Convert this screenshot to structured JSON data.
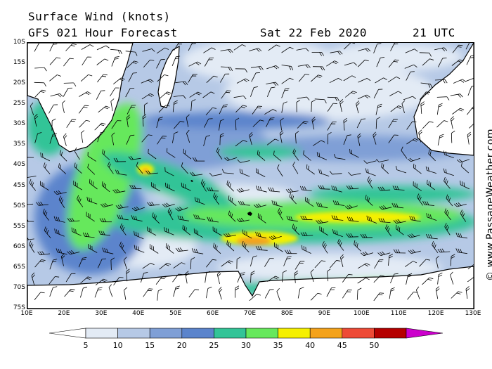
{
  "header": {
    "title_line1": "Surface Wind (knots)",
    "title_line2": "GFS 021 Hour Forecast",
    "date": "Sat 22 Feb 2020",
    "time": "21 UTC"
  },
  "copyright": "© www.PassageWeather.com",
  "map": {
    "lat_labels": [
      "10S",
      "15S",
      "20S",
      "25S",
      "30S",
      "35S",
      "40S",
      "45S",
      "50S",
      "55S",
      "60S",
      "65S",
      "70S",
      "75S"
    ],
    "lon_labels": [
      "10E",
      "20E",
      "30E",
      "40E",
      "50E",
      "60E",
      "70E",
      "80E",
      "90E",
      "100E",
      "110E",
      "120E",
      "130E"
    ]
  },
  "scale": {
    "unit": "knots",
    "ticks": [
      "5",
      "10",
      "15",
      "20",
      "25",
      "30",
      "35",
      "40",
      "45",
      "50"
    ],
    "colors": [
      "#ffffff",
      "#e3ebf5",
      "#b6c9e6",
      "#7f9fd6",
      "#5b84cc",
      "#33c497",
      "#66e85c",
      "#f5f000",
      "#f4a21a",
      "#ee4a36",
      "#b50000",
      "#cc00cc"
    ]
  }
}
